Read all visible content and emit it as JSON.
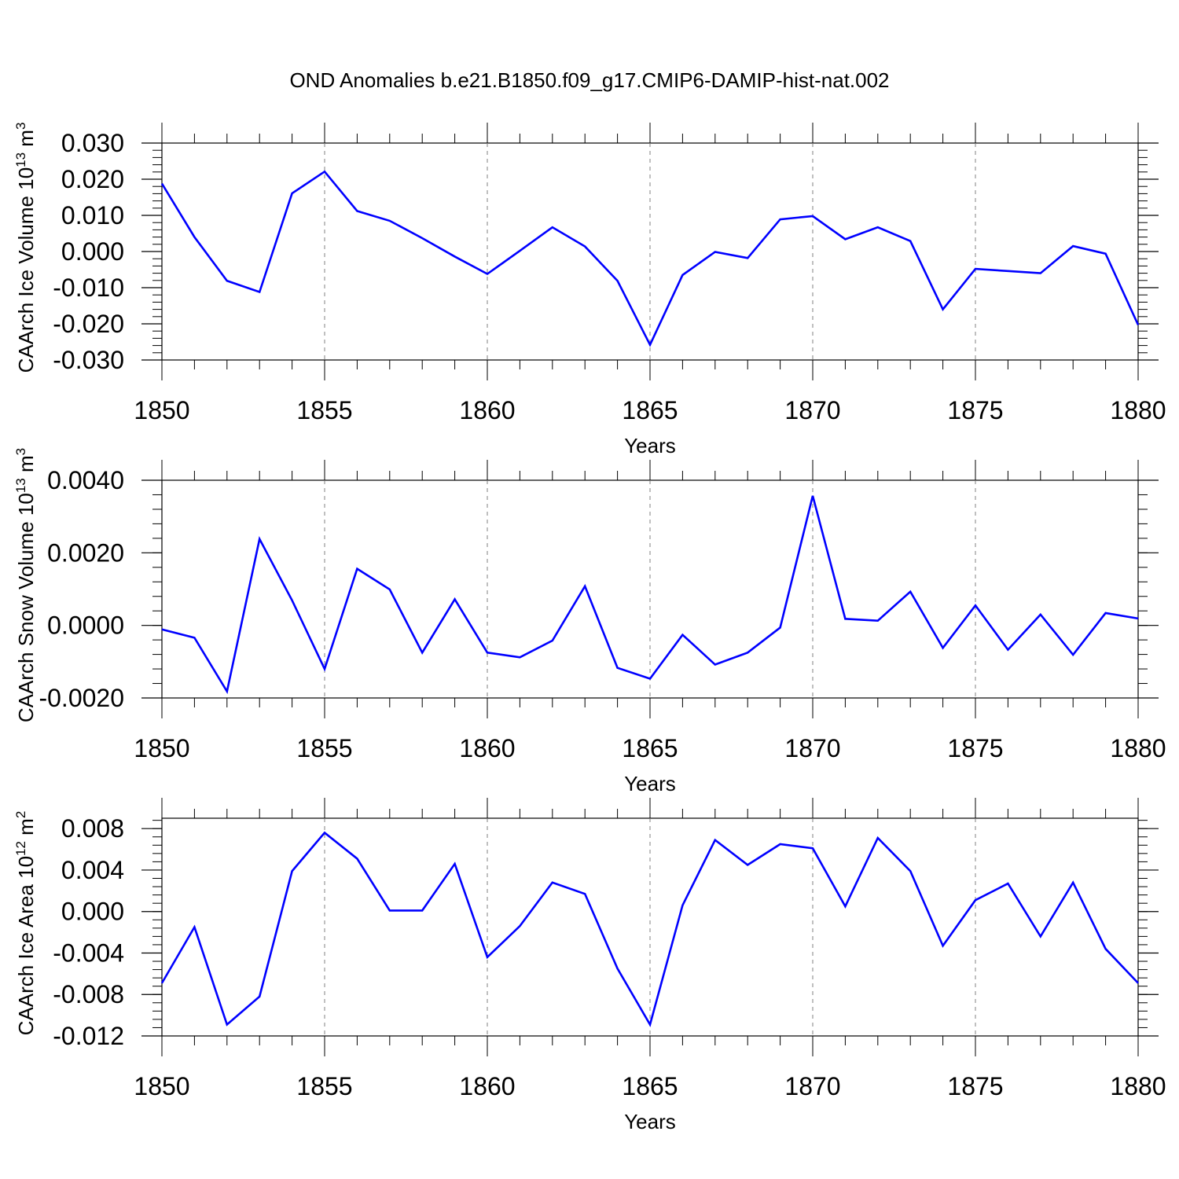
{
  "title": "OND Anomalies b.e21.B1850.f09_g17.CMIP6-DAMIP-hist-nat.002",
  "colors": {
    "line": "#0000ff",
    "axis": "#000000",
    "grid": "#808080",
    "background": "#ffffff"
  },
  "chart_data": [
    {
      "type": "line",
      "xlabel": "Years",
      "ylabel": "CAArch Ice Volume 10",
      "ylabel_exp": "13",
      "ylabel_unit": " m",
      "ylabel_unit_exp": "3",
      "xlim": [
        1850,
        1880
      ],
      "ylim": [
        -0.03,
        0.03
      ],
      "xticks": [
        "1850",
        "1855",
        "1860",
        "1865",
        "1870",
        "1875",
        "1880"
      ],
      "yticks": [
        "0.030",
        "0.020",
        "0.010",
        "0.000",
        "-0.010",
        "-0.020",
        "-0.030"
      ],
      "ytick_values": [
        0.03,
        0.02,
        0.01,
        0.0,
        -0.01,
        -0.02,
        -0.03
      ],
      "grid": "vertical dashed at major x ticks",
      "x": [
        1850,
        1851,
        1852,
        1853,
        1854,
        1855,
        1856,
        1857,
        1858,
        1859,
        1860,
        1861,
        1862,
        1863,
        1864,
        1865,
        1866,
        1867,
        1868,
        1869,
        1870,
        1871,
        1872,
        1873,
        1874,
        1875,
        1876,
        1877,
        1878,
        1879,
        1880
      ],
      "series": [
        {
          "values": [
            0.0188,
            0.004,
            -0.0081,
            -0.0112,
            0.0161,
            0.0221,
            0.0112,
            0.0085,
            0.0037,
            -0.0014,
            -0.0062,
            0.0002,
            0.0067,
            0.0014,
            -0.0081,
            -0.0258,
            -0.0065,
            -0.0001,
            -0.0018,
            0.0089,
            0.0098,
            0.0034,
            0.0067,
            0.0029,
            -0.016,
            -0.0048,
            -0.0054,
            -0.006,
            0.0015,
            -0.0006,
            -0.0203
          ]
        }
      ]
    },
    {
      "type": "line",
      "xlabel": "Years",
      "ylabel": "CAArch Snow Volume 10",
      "ylabel_exp": "13",
      "ylabel_unit": " m",
      "ylabel_unit_exp": "3",
      "xlim": [
        1850,
        1880
      ],
      "ylim": [
        -0.002,
        0.004
      ],
      "xticks": [
        "1850",
        "1855",
        "1860",
        "1865",
        "1870",
        "1875",
        "1880"
      ],
      "yticks": [
        "0.0040",
        "0.0020",
        "0.0000",
        "-0.0020"
      ],
      "ytick_values": [
        0.004,
        0.002,
        0.0,
        -0.002
      ],
      "grid": "vertical dashed at major x ticks",
      "x": [
        1850,
        1851,
        1852,
        1853,
        1854,
        1855,
        1856,
        1857,
        1858,
        1859,
        1860,
        1861,
        1862,
        1863,
        1864,
        1865,
        1866,
        1867,
        1868,
        1869,
        1870,
        1871,
        1872,
        1873,
        1874,
        1875,
        1876,
        1877,
        1878,
        1879,
        1880
      ],
      "series": [
        {
          "values": [
            -0.00011,
            -0.00034,
            -0.00182,
            0.00238,
            0.00069,
            -0.0012,
            0.00156,
            0.00099,
            -0.00075,
            0.00072,
            -0.00075,
            -0.00088,
            -0.00042,
            0.00108,
            -0.00117,
            -0.00147,
            -0.00026,
            -0.00108,
            -0.00075,
            -6e-05,
            0.00357,
            0.00018,
            0.00013,
            0.00093,
            -0.00062,
            0.00055,
            -0.00067,
            0.0003,
            -0.00081,
            0.00034,
            0.00019
          ]
        }
      ]
    },
    {
      "type": "line",
      "xlabel": "Years",
      "ylabel": "CAArch Ice Area 10",
      "ylabel_exp": "12",
      "ylabel_unit": " m",
      "ylabel_unit_exp": "2",
      "xlim": [
        1850,
        1880
      ],
      "ylim": [
        -0.012,
        0.009
      ],
      "xticks": [
        "1850",
        "1855",
        "1860",
        "1865",
        "1870",
        "1875",
        "1880"
      ],
      "yticks": [
        "0.008",
        "0.004",
        "0.000",
        "-0.004",
        "-0.008",
        "-0.012"
      ],
      "ytick_values": [
        0.008,
        0.004,
        0.0,
        -0.004,
        -0.008,
        -0.012
      ],
      "grid": "vertical dashed at major x ticks",
      "x": [
        1850,
        1851,
        1852,
        1853,
        1854,
        1855,
        1856,
        1857,
        1858,
        1859,
        1860,
        1861,
        1862,
        1863,
        1864,
        1865,
        1866,
        1867,
        1868,
        1869,
        1870,
        1871,
        1872,
        1873,
        1874,
        1875,
        1876,
        1877,
        1878,
        1879,
        1880
      ],
      "series": [
        {
          "values": [
            -0.0069,
            -0.0015,
            -0.0109,
            -0.0082,
            0.0039,
            0.0076,
            0.0051,
            0.0001,
            0.0001,
            0.0046,
            -0.0044,
            -0.0014,
            0.0028,
            0.0017,
            -0.0055,
            -0.0109,
            0.0006,
            0.0069,
            0.0045,
            0.0065,
            0.0061,
            0.0005,
            0.0071,
            0.0039,
            -0.0033,
            0.0011,
            0.0027,
            -0.0024,
            0.0028,
            -0.0036,
            -0.0069
          ]
        }
      ]
    }
  ]
}
